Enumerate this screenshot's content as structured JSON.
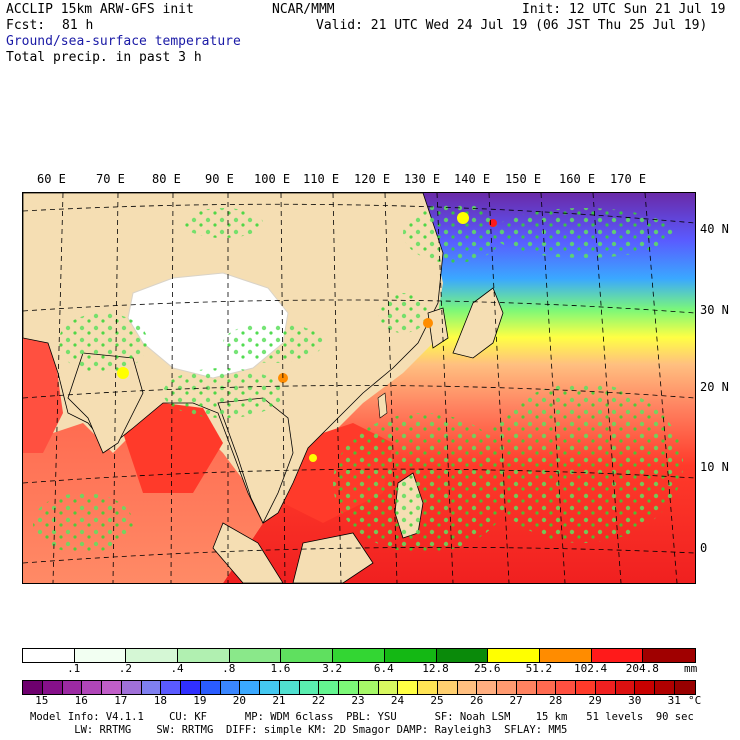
{
  "header": {
    "model_line": "ACCLIP 15km ARW-GFS init",
    "org": "NCAR/MMM",
    "init": "Init: 12 UTC Sun 21 Jul 19",
    "fcst_label": "Fcst:",
    "fcst_value": "81 h",
    "valid": "Valid: 21 UTC Wed 24 Jul 19 (06 JST Thu 25 Jul 19)",
    "field1": "Ground/sea-surface temperature",
    "field2": "Total precip. in past 3 h"
  },
  "map": {
    "lon_labels": [
      "60 E",
      "70 E",
      "80 E",
      "90 E",
      "100 E",
      "110 E",
      "120 E",
      "130 E",
      "140 E",
      "150 E",
      "160 E",
      "170 E"
    ],
    "lat_labels": [
      "40 N",
      "30 N",
      "20 N",
      "10 N",
      "0"
    ],
    "land_color": "#f5deb3",
    "plateau_color": "#ffffff",
    "ocean_warm_color": "#ff3a2a",
    "ocean_cool_color": "#6a2aa8"
  },
  "precip_scale": {
    "ticks": [
      ".1",
      ".2",
      ".4",
      ".8",
      "1.6",
      "3.2",
      "6.4",
      "12.8",
      "25.6",
      "51.2",
      "102.4",
      "204.8"
    ],
    "unit": "mm",
    "colors": [
      "#ffffff",
      "#f2fff2",
      "#d5f7d5",
      "#b1f0b1",
      "#8ae88a",
      "#5fe05f",
      "#33d633",
      "#14b814",
      "#0a8a0a",
      "#ffff00",
      "#ff8c00",
      "#ff1a1a",
      "#a00000"
    ]
  },
  "temp_scale": {
    "ticks": [
      "15",
      "16",
      "17",
      "18",
      "19",
      "20",
      "21",
      "22",
      "23",
      "24",
      "25",
      "26",
      "27",
      "28",
      "29",
      "30",
      "31"
    ],
    "unit": "°C",
    "colors": [
      "#6e006e",
      "#86108a",
      "#9c2aa3",
      "#b046b8",
      "#c05ec8",
      "#a070d8",
      "#7f7ff0",
      "#5a5aff",
      "#3030ff",
      "#2a5cff",
      "#3a86ff",
      "#3aa8ff",
      "#44c8f0",
      "#50e0d0",
      "#5aeeb0",
      "#64f590",
      "#7cf878",
      "#a6f868",
      "#d8f860",
      "#ffff44",
      "#ffe455",
      "#ffd070",
      "#ffbf80",
      "#ffae80",
      "#ff9a70",
      "#ff8260",
      "#ff6a50",
      "#ff5040",
      "#ff3a2a",
      "#f02020",
      "#dc1010",
      "#c80000",
      "#b00000",
      "#980000"
    ]
  },
  "info": {
    "line1": "Model Info: V4.1.1    CU: KF      MP: WDM 6class  PBL: YSU      SF: Noah LSM    15 km   51 levels  90 sec",
    "line2": "       LW: RRTMG    SW: RRTMG  DIFF: simple KM: 2D Smagor DAMP: Rayleigh3  SFLAY: MM5"
  }
}
